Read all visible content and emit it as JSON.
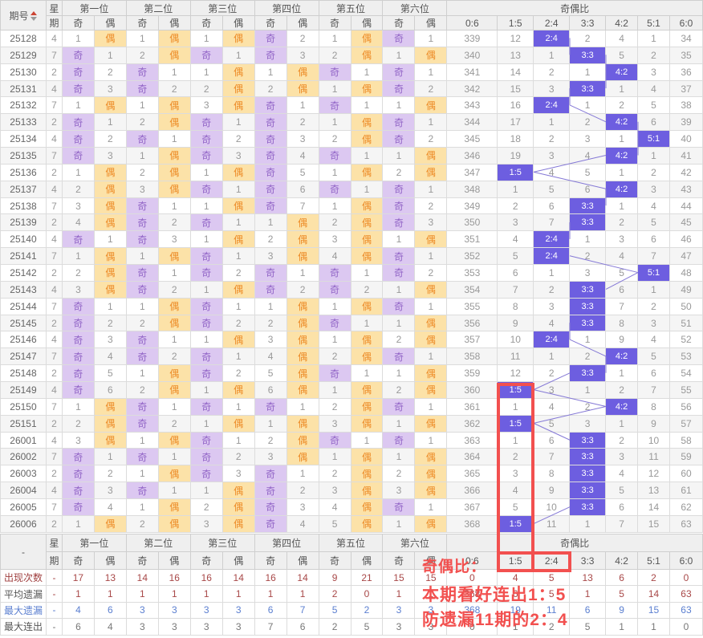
{
  "colors": {
    "odd_bg": "#dcc8f1",
    "odd_text": "#9163c6",
    "even_bg": "#fce2a8",
    "even_text": "#ed8b26",
    "ratio_hl_bg": "#6d5ee0",
    "ratio_hl_text": "#ffffff",
    "annotation_red": "#f2504f",
    "stat_red": "#a84848",
    "stat_blue": "#5b7fd0",
    "connector": "#8579d6"
  },
  "main_table": {
    "issue_header": "期号",
    "week_header": "星期",
    "position_headers": [
      "第一位",
      "第二位",
      "第三位",
      "第四位",
      "第五位",
      "第六位"
    ],
    "odd_label": "奇",
    "even_label": "偶",
    "ratio_header": "奇偶比",
    "ratio_columns": [
      "0:6",
      "1:5",
      "2:4",
      "3:3",
      "4:2",
      "5:1",
      "6:0"
    ],
    "rows": [
      {
        "issue": "25128",
        "week": "4",
        "cells": [
          "1",
          "偶",
          "1",
          "偶",
          "1",
          "偶",
          "奇",
          "2",
          "1",
          "偶",
          "奇",
          "1"
        ],
        "ratios": [
          "339",
          "12",
          "2:4",
          "2",
          "4",
          "1",
          "34"
        ]
      },
      {
        "issue": "25129",
        "week": "7",
        "cells": [
          "奇",
          "1",
          "2",
          "偶",
          "奇",
          "1",
          "奇",
          "3",
          "2",
          "偶",
          "1",
          "偶"
        ],
        "ratios": [
          "340",
          "13",
          "1",
          "3:3",
          "5",
          "2",
          "35"
        ]
      },
      {
        "issue": "25130",
        "week": "2",
        "cells": [
          "奇",
          "2",
          "奇",
          "1",
          "1",
          "偶",
          "1",
          "偶",
          "奇",
          "1",
          "奇",
          "1"
        ],
        "ratios": [
          "341",
          "14",
          "2",
          "1",
          "4:2",
          "3",
          "36"
        ]
      },
      {
        "issue": "25131",
        "week": "4",
        "cells": [
          "奇",
          "3",
          "奇",
          "2",
          "2",
          "偶",
          "2",
          "偶",
          "1",
          "偶",
          "奇",
          "2"
        ],
        "ratios": [
          "342",
          "15",
          "3",
          "3:3",
          "1",
          "4",
          "37"
        ]
      },
      {
        "issue": "25132",
        "week": "7",
        "cells": [
          "1",
          "偶",
          "1",
          "偶",
          "3",
          "偶",
          "奇",
          "1",
          "奇",
          "1",
          "1",
          "偶"
        ],
        "ratios": [
          "343",
          "16",
          "2:4",
          "1",
          "2",
          "5",
          "38"
        ]
      },
      {
        "issue": "25133",
        "week": "2",
        "cells": [
          "奇",
          "1",
          "2",
          "偶",
          "奇",
          "1",
          "奇",
          "2",
          "1",
          "偶",
          "奇",
          "1"
        ],
        "ratios": [
          "344",
          "17",
          "1",
          "2",
          "4:2",
          "6",
          "39"
        ]
      },
      {
        "issue": "25134",
        "week": "4",
        "cells": [
          "奇",
          "2",
          "奇",
          "1",
          "奇",
          "2",
          "奇",
          "3",
          "2",
          "偶",
          "奇",
          "2"
        ],
        "ratios": [
          "345",
          "18",
          "2",
          "3",
          "1",
          "5:1",
          "40"
        ]
      },
      {
        "issue": "25135",
        "week": "7",
        "cells": [
          "奇",
          "3",
          "1",
          "偶",
          "奇",
          "3",
          "奇",
          "4",
          "奇",
          "1",
          "1",
          "偶"
        ],
        "ratios": [
          "346",
          "19",
          "3",
          "4",
          "4:2",
          "1",
          "41"
        ]
      },
      {
        "issue": "25136",
        "week": "2",
        "cells": [
          "1",
          "偶",
          "2",
          "偶",
          "1",
          "偶",
          "奇",
          "5",
          "1",
          "偶",
          "2",
          "偶"
        ],
        "ratios": [
          "347",
          "1:5",
          "4",
          "5",
          "1",
          "2",
          "42"
        ]
      },
      {
        "issue": "25137",
        "week": "4",
        "cells": [
          "2",
          "偶",
          "3",
          "偶",
          "奇",
          "1",
          "奇",
          "6",
          "奇",
          "1",
          "奇",
          "1"
        ],
        "ratios": [
          "348",
          "1",
          "5",
          "6",
          "4:2",
          "3",
          "43"
        ]
      },
      {
        "issue": "25138",
        "week": "7",
        "cells": [
          "3",
          "偶",
          "奇",
          "1",
          "1",
          "偶",
          "奇",
          "7",
          "1",
          "偶",
          "奇",
          "2"
        ],
        "ratios": [
          "349",
          "2",
          "6",
          "3:3",
          "1",
          "4",
          "44"
        ]
      },
      {
        "issue": "25139",
        "week": "2",
        "cells": [
          "4",
          "偶",
          "奇",
          "2",
          "奇",
          "1",
          "1",
          "偶",
          "2",
          "偶",
          "奇",
          "3"
        ],
        "ratios": [
          "350",
          "3",
          "7",
          "3:3",
          "2",
          "5",
          "45"
        ]
      },
      {
        "issue": "25140",
        "week": "4",
        "cells": [
          "奇",
          "1",
          "奇",
          "3",
          "1",
          "偶",
          "2",
          "偶",
          "3",
          "偶",
          "1",
          "偶"
        ],
        "ratios": [
          "351",
          "4",
          "2:4",
          "1",
          "3",
          "6",
          "46"
        ]
      },
      {
        "issue": "25141",
        "week": "7",
        "cells": [
          "1",
          "偶",
          "1",
          "偶",
          "奇",
          "1",
          "3",
          "偶",
          "4",
          "偶",
          "奇",
          "1"
        ],
        "ratios": [
          "352",
          "5",
          "2:4",
          "2",
          "4",
          "7",
          "47"
        ]
      },
      {
        "issue": "25142",
        "week": "2",
        "cells": [
          "2",
          "偶",
          "奇",
          "1",
          "奇",
          "2",
          "奇",
          "1",
          "奇",
          "1",
          "奇",
          "2"
        ],
        "ratios": [
          "353",
          "6",
          "1",
          "3",
          "5",
          "5:1",
          "48"
        ]
      },
      {
        "issue": "25143",
        "week": "4",
        "cells": [
          "3",
          "偶",
          "奇",
          "2",
          "1",
          "偶",
          "奇",
          "2",
          "奇",
          "2",
          "1",
          "偶"
        ],
        "ratios": [
          "354",
          "7",
          "2",
          "3:3",
          "6",
          "1",
          "49"
        ]
      },
      {
        "issue": "25144",
        "week": "7",
        "cells": [
          "奇",
          "1",
          "1",
          "偶",
          "奇",
          "1",
          "1",
          "偶",
          "1",
          "偶",
          "奇",
          "1"
        ],
        "ratios": [
          "355",
          "8",
          "3",
          "3:3",
          "7",
          "2",
          "50"
        ]
      },
      {
        "issue": "25145",
        "week": "2",
        "cells": [
          "奇",
          "2",
          "2",
          "偶",
          "奇",
          "2",
          "2",
          "偶",
          "奇",
          "1",
          "1",
          "偶"
        ],
        "ratios": [
          "356",
          "9",
          "4",
          "3:3",
          "8",
          "3",
          "51"
        ]
      },
      {
        "issue": "25146",
        "week": "4",
        "cells": [
          "奇",
          "3",
          "奇",
          "1",
          "1",
          "偶",
          "3",
          "偶",
          "1",
          "偶",
          "2",
          "偶"
        ],
        "ratios": [
          "357",
          "10",
          "2:4",
          "1",
          "9",
          "4",
          "52"
        ]
      },
      {
        "issue": "25147",
        "week": "7",
        "cells": [
          "奇",
          "4",
          "奇",
          "2",
          "奇",
          "1",
          "4",
          "偶",
          "2",
          "偶",
          "奇",
          "1"
        ],
        "ratios": [
          "358",
          "11",
          "1",
          "2",
          "4:2",
          "5",
          "53"
        ]
      },
      {
        "issue": "25148",
        "week": "2",
        "cells": [
          "奇",
          "5",
          "1",
          "偶",
          "奇",
          "2",
          "5",
          "偶",
          "奇",
          "1",
          "1",
          "偶"
        ],
        "ratios": [
          "359",
          "12",
          "2",
          "3:3",
          "1",
          "6",
          "54"
        ]
      },
      {
        "issue": "25149",
        "week": "4",
        "cells": [
          "奇",
          "6",
          "2",
          "偶",
          "1",
          "偶",
          "6",
          "偶",
          "1",
          "偶",
          "2",
          "偶"
        ],
        "ratios": [
          "360",
          "1:5",
          "3",
          "1",
          "2",
          "7",
          "55"
        ]
      },
      {
        "issue": "25150",
        "week": "7",
        "cells": [
          "1",
          "偶",
          "奇",
          "1",
          "奇",
          "1",
          "奇",
          "1",
          "2",
          "偶",
          "奇",
          "1"
        ],
        "ratios": [
          "361",
          "1",
          "4",
          "2",
          "4:2",
          "8",
          "56"
        ]
      },
      {
        "issue": "25151",
        "week": "2",
        "cells": [
          "2",
          "偶",
          "奇",
          "2",
          "1",
          "偶",
          "1",
          "偶",
          "3",
          "偶",
          "1",
          "偶"
        ],
        "ratios": [
          "362",
          "1:5",
          "5",
          "3",
          "1",
          "9",
          "57"
        ]
      },
      {
        "issue": "26001",
        "week": "4",
        "cells": [
          "3",
          "偶",
          "1",
          "偶",
          "奇",
          "1",
          "2",
          "偶",
          "奇",
          "1",
          "奇",
          "1"
        ],
        "ratios": [
          "363",
          "1",
          "6",
          "3:3",
          "2",
          "10",
          "58"
        ]
      },
      {
        "issue": "26002",
        "week": "7",
        "cells": [
          "奇",
          "1",
          "奇",
          "1",
          "奇",
          "2",
          "3",
          "偶",
          "1",
          "偶",
          "1",
          "偶"
        ],
        "ratios": [
          "364",
          "2",
          "7",
          "3:3",
          "3",
          "11",
          "59"
        ]
      },
      {
        "issue": "26003",
        "week": "2",
        "cells": [
          "奇",
          "2",
          "1",
          "偶",
          "奇",
          "3",
          "奇",
          "1",
          "2",
          "偶",
          "2",
          "偶"
        ],
        "ratios": [
          "365",
          "3",
          "8",
          "3:3",
          "4",
          "12",
          "60"
        ]
      },
      {
        "issue": "26004",
        "week": "4",
        "cells": [
          "奇",
          "3",
          "奇",
          "1",
          "1",
          "偶",
          "奇",
          "2",
          "3",
          "偶",
          "3",
          "偶"
        ],
        "ratios": [
          "366",
          "4",
          "9",
          "3:3",
          "5",
          "13",
          "61"
        ]
      },
      {
        "issue": "26005",
        "week": "7",
        "cells": [
          "奇",
          "4",
          "1",
          "偶",
          "2",
          "偶",
          "奇",
          "3",
          "4",
          "偶",
          "奇",
          "1"
        ],
        "ratios": [
          "367",
          "5",
          "10",
          "3:3",
          "6",
          "14",
          "62"
        ]
      },
      {
        "issue": "26006",
        "week": "2",
        "cells": [
          "1",
          "偶",
          "2",
          "偶",
          "3",
          "偶",
          "奇",
          "4",
          "5",
          "偶",
          "1",
          "偶"
        ],
        "ratios": [
          "368",
          "1:5",
          "11",
          "1",
          "7",
          "15",
          "63"
        ]
      }
    ]
  },
  "footer_table": {
    "corner_label": "-",
    "week_header": "星期",
    "position_headers": [
      "第一位",
      "第二位",
      "第三位",
      "第四位",
      "第五位",
      "第六位"
    ],
    "odd_label": "奇",
    "even_label": "偶",
    "ratio_header": "奇偶比",
    "ratio_columns": [
      "0:6",
      "1:5",
      "2:4",
      "3:3",
      "4:2",
      "5:1",
      "6:0"
    ],
    "rows": [
      {
        "label": "出现次数",
        "week": "-",
        "label_color": "#a04040",
        "value_color": "#a84848",
        "values": [
          "17",
          "13",
          "14",
          "16",
          "16",
          "14",
          "16",
          "14",
          "9",
          "21",
          "15",
          "15",
          "0",
          "4",
          "5",
          "13",
          "6",
          "2",
          "0"
        ]
      },
      {
        "label": "平均遗漏",
        "week": "-",
        "label_color": "#555555",
        "value_color": "#a84848",
        "values": [
          "1",
          "1",
          "1",
          "1",
          "1",
          "1",
          "1",
          "1",
          "2",
          "0",
          "1",
          "1",
          "368",
          "6",
          "5",
          "1",
          "5",
          "14",
          "63"
        ]
      },
      {
        "label": "最大遗漏",
        "week": "-",
        "label_color": "#5b7fd0",
        "value_color": "#5b7fd0",
        "values": [
          "4",
          "6",
          "3",
          "3",
          "3",
          "3",
          "6",
          "7",
          "5",
          "2",
          "3",
          "3",
          "368",
          "19",
          "11",
          "6",
          "9",
          "15",
          "63"
        ]
      },
      {
        "label": "最大连出",
        "week": "-",
        "label_color": "#555555",
        "value_color": "#777777",
        "values": [
          "6",
          "4",
          "3",
          "3",
          "3",
          "3",
          "7",
          "6",
          "2",
          "5",
          "3",
          "3",
          "0",
          "1",
          "2",
          "5",
          "1",
          "1",
          "0"
        ]
      }
    ]
  },
  "annotation": {
    "line1": "奇偶比：",
    "line2": "本期看好连出1：5",
    "line3": "防遗漏11期的2：4"
  }
}
